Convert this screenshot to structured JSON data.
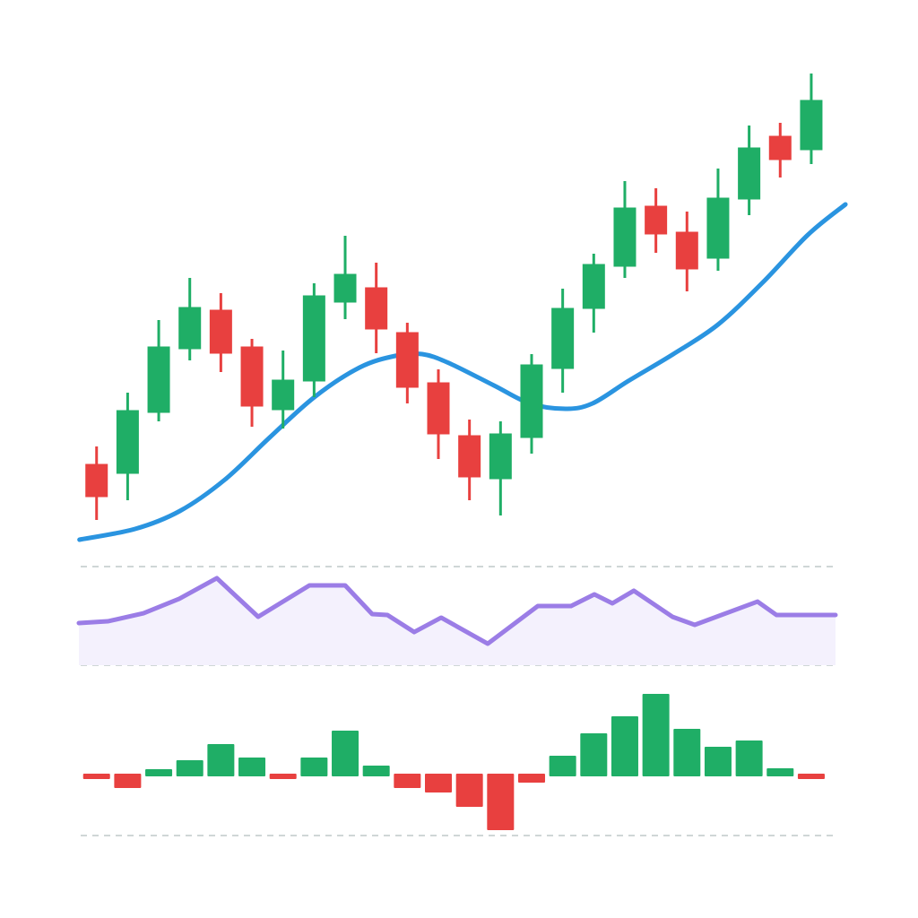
{
  "chart_data": [
    {
      "type": "candlestick",
      "x": [
        0,
        1,
        2,
        3,
        4,
        5,
        6,
        7,
        8,
        9,
        10,
        11,
        12,
        13,
        14,
        15,
        16,
        17,
        18,
        19,
        20,
        21,
        22,
        23
      ],
      "open": [
        102,
        92,
        160,
        231,
        274,
        233,
        163,
        195,
        283,
        299,
        249,
        193,
        134,
        86,
        132,
        209,
        276,
        323,
        390,
        361,
        332,
        398,
        468,
        453
      ],
      "high": [
        122,
        182,
        263,
        310,
        293,
        242,
        229,
        304,
        357,
        327,
        260,
        208,
        152,
        150,
        225,
        298,
        337,
        418,
        410,
        384,
        432,
        480,
        483,
        538
      ],
      "low": [
        40,
        62,
        150,
        218,
        205,
        144,
        142,
        177,
        264,
        226,
        170,
        108,
        62,
        45,
        114,
        182,
        249,
        310,
        338,
        295,
        318,
        380,
        422,
        437
      ],
      "close": [
        66,
        162,
        233,
        277,
        226,
        167,
        196,
        290,
        314,
        253,
        188,
        136,
        88,
        136,
        213,
        276,
        325,
        388,
        359,
        320,
        399,
        455,
        442,
        508
      ],
      "up_color": "#1fae66",
      "down_color": "#e8403f",
      "xlim": [
        -0.8,
        24.3
      ],
      "ylim": [
        0,
        560
      ],
      "moving_average": {
        "type": "line",
        "color": "#2a94e0",
        "x": [
          -0.55,
          1.24,
          2.68,
          4.13,
          5.57,
          7.01,
          8.46,
          9.61,
          10.48,
          11.34,
          12.79,
          13.94,
          15.09,
          15.96,
          17.11,
          18.56,
          20.0,
          21.44,
          22.89,
          24.1
        ],
        "values": [
          18,
          30,
          50,
          85,
          132,
          177,
          210,
          223,
          225,
          215,
          190,
          170,
          164,
          170,
          195,
          225,
          258,
          305,
          358,
          392
        ]
      }
    },
    {
      "type": "area",
      "x": [
        -0.57,
        0.36,
        1.51,
        2.66,
        3.87,
        5.2,
        6.85,
        8.0,
        8.87,
        9.36,
        10.22,
        11.09,
        12.59,
        14.2,
        15.27,
        16.02,
        16.6,
        17.29,
        18.53,
        19.25,
        21.27,
        21.88,
        23.78
      ],
      "values": [
        42.7,
        44.5,
        52.7,
        67.3,
        88.2,
        49.1,
        80.9,
        80.9,
        51.8,
        50.9,
        33.6,
        48.2,
        21.8,
        60,
        60,
        71.8,
        62.7,
        75.5,
        49.1,
        40.9,
        64.5,
        50.9,
        50.9
      ],
      "color": "#9b7de6",
      "fill_color": "#f4f1fd",
      "xlim": [
        -0.8,
        24.3
      ],
      "ylim": [
        0,
        100
      ],
      "yticks": [
        0,
        100
      ],
      "grid": true
    },
    {
      "type": "bar",
      "x": [
        0,
        1,
        2,
        3,
        4,
        5,
        6,
        7,
        8,
        9,
        10,
        11,
        12,
        13,
        14,
        15,
        16,
        17,
        18,
        19,
        20,
        21,
        22,
        23
      ],
      "values": [
        -4,
        -16,
        8,
        18,
        36,
        21,
        -6,
        21,
        51,
        12,
        -16,
        -21,
        -37,
        -63,
        -10,
        23,
        48,
        67,
        92,
        53,
        33,
        40,
        9,
        -6
      ],
      "positive_color": "#1fae66",
      "negative_color": "#e8403f",
      "xlim": [
        -0.8,
        24.3
      ],
      "ylim": [
        -66,
        96
      ]
    }
  ]
}
